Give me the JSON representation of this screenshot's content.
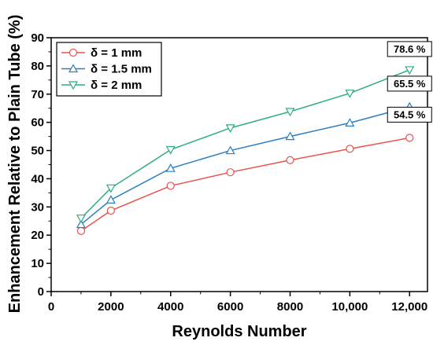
{
  "chart_data": {
    "type": "line",
    "title": "",
    "xlabel": "Reynolds Number",
    "ylabel": "Enhancement Relative to Plain Tube (%)",
    "xlim": [
      0,
      12600
    ],
    "ylim": [
      0,
      90
    ],
    "xticks": [
      0,
      2000,
      4000,
      6000,
      8000,
      10000,
      12000
    ],
    "xtick_labels": [
      "0",
      "2000",
      "4000",
      "6000",
      "8000",
      "10,000",
      "12,000"
    ],
    "yticks": [
      0,
      10,
      20,
      30,
      40,
      50,
      60,
      70,
      80,
      90
    ],
    "ytick_labels": [
      "0",
      "10",
      "20",
      "30",
      "40",
      "50",
      "60",
      "70",
      "80",
      "90"
    ],
    "grid": false,
    "legend_position": "top-left",
    "x": [
      1000,
      2000,
      4000,
      6000,
      8000,
      10000,
      12000
    ],
    "series": [
      {
        "name": "δ = 1 mm",
        "color": "#e8534a",
        "marker": "circle",
        "values": [
          21.5,
          28.7,
          37.5,
          42.3,
          46.6,
          50.6,
          54.5
        ]
      },
      {
        "name": "δ = 1.5 mm",
        "color": "#2a7fc1",
        "marker": "triangle-up",
        "values": [
          23.8,
          32.5,
          43.7,
          50.0,
          55.0,
          59.8,
          65.5
        ]
      },
      {
        "name": "δ = 2 mm",
        "color": "#2fae7e",
        "marker": "triangle-down",
        "values": [
          26.0,
          36.7,
          50.3,
          58.0,
          63.8,
          70.3,
          78.6
        ]
      }
    ],
    "annotations": [
      {
        "text": "78.6 %",
        "series": 2
      },
      {
        "text": "65.5 %",
        "series": 1
      },
      {
        "text": "54.5 %",
        "series": 0
      }
    ]
  }
}
